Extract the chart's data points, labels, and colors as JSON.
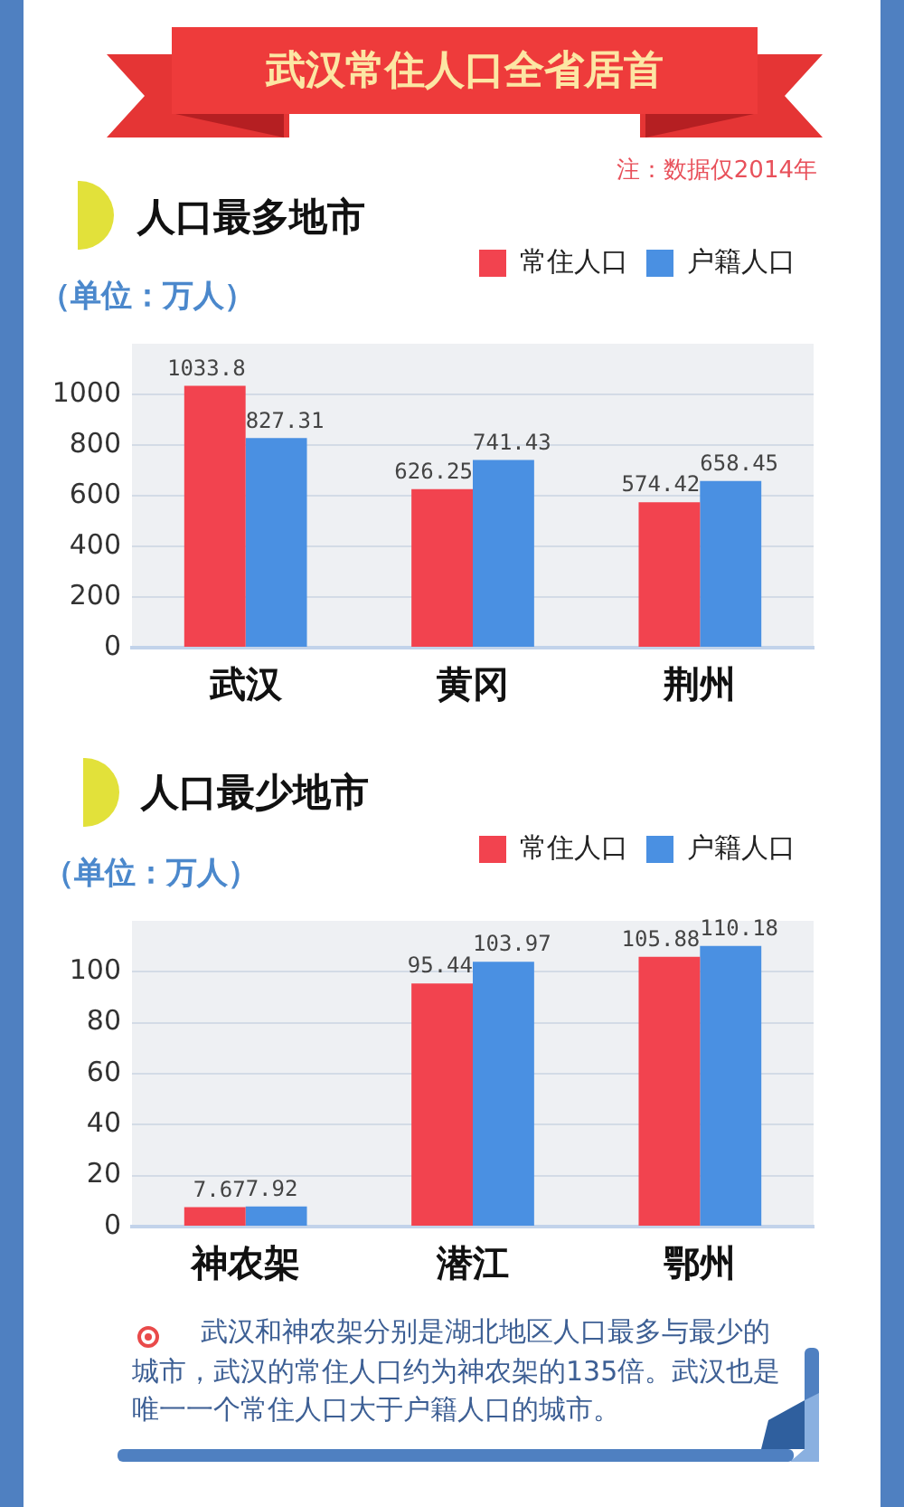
{
  "chart_data": [
    {
      "type": "bar",
      "title": "武汉常住人口全省居首",
      "subtitle": "人口最多地市",
      "ylabel": "（单位：万人）",
      "annotations": [
        "注：数据仅2014年"
      ],
      "categories": [
        "武汉",
        "黄冈",
        "荆州"
      ],
      "series": [
        {
          "name": "常住人口",
          "color": "#f2434f",
          "values": [
            1033.8,
            626.25,
            574.42
          ]
        },
        {
          "name": "户籍人口",
          "color": "#4a90e2",
          "values": [
            827.31,
            741.43,
            658.45
          ]
        }
      ],
      "ylim": [
        0,
        1200
      ],
      "yticks": [
        0,
        200,
        400,
        600,
        800,
        1000
      ],
      "grid": "y",
      "legend": "top right",
      "data_labels": true
    },
    {
      "type": "bar",
      "title": "人口最少地市",
      "ylabel": "（单位：万人）",
      "annotations": [
        "武汉和神农架分别是湖北地区人口最多与最少的城市，武汉的常住人口约为神农架的135倍。武汉也是唯一一个常住人口大于户籍人口的城市。"
      ],
      "categories": [
        "神农架",
        "潜江",
        "鄂州"
      ],
      "series": [
        {
          "name": "常住人口",
          "color": "#f2434f",
          "values": [
            7.67,
            95.44,
            105.88
          ]
        },
        {
          "name": "户籍人口",
          "color": "#4a90e2",
          "values": [
            7.92,
            103.97,
            110.18
          ]
        }
      ],
      "ylim": [
        0,
        120
      ],
      "yticks": [
        0,
        20,
        40,
        60,
        80,
        100
      ],
      "grid": "y",
      "legend": "top right",
      "data_labels": true
    }
  ]
}
